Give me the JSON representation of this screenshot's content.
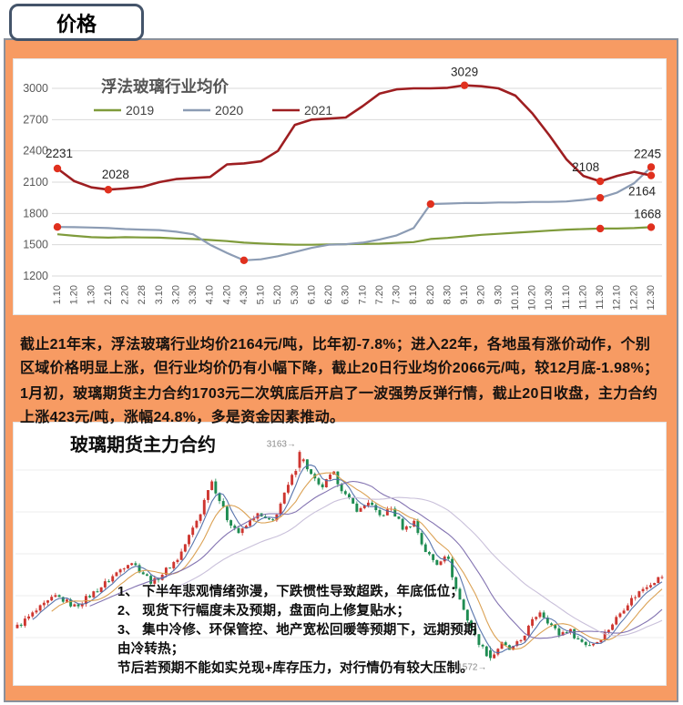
{
  "header": {
    "title": "价格"
  },
  "paragraphs": [
    "截止21年末，浮法玻璃行业均价2164元/吨，比年初-7.8%；进入22年，各地虽有涨价动作，个别区域价格明显上涨，但行业均价仍有小幅下降，截止20日行业均价2066元/吨，较12月底-1.98%；",
    "1月初，玻璃期货主力合约1703元二次筑底后开启了一波强势反弹行情，截止20日收盘，主力合约上涨423元/吨，涨幅24.8%，多是资金因素推动。"
  ],
  "colors": {
    "background_orange": "#F79B63",
    "outer_border": "#8A909B",
    "tab_border": "#44546A",
    "marker_red": "#E0301E"
  },
  "chart_data": [
    {
      "type": "line",
      "title": "浮法玻璃行业均价",
      "legend_position": "top",
      "grid": true,
      "grid_color": "#D9D9D9",
      "axis_text_color": "#595959",
      "marker_color": "#E0301E",
      "yticks": [
        1200,
        1500,
        1800,
        2100,
        2400,
        2700,
        3000
      ],
      "ylim": [
        1200,
        3050
      ],
      "categories": [
        "1.10",
        "1.20",
        "1.30",
        "2.10",
        "2.20",
        "2.28",
        "3.10",
        "3.20",
        "3.30",
        "4.10",
        "4.20",
        "4.30",
        "5.10",
        "5.20",
        "5.30",
        "6.10",
        "6.20",
        "6.30",
        "7.10",
        "7.20",
        "7.30",
        "8.10",
        "8.20",
        "8.30",
        "9.10",
        "9.20",
        "9.30",
        "10.10",
        "10.20",
        "10.30",
        "11.10",
        "11.20",
        "11.30",
        "12.10",
        "12.20",
        "12.30"
      ],
      "series": [
        {
          "name": "2019",
          "color": "#7F9B3B",
          "values": [
            1600,
            1585,
            1572,
            1568,
            1572,
            1570,
            1568,
            1560,
            1555,
            1545,
            1535,
            1520,
            1512,
            1505,
            1500,
            1500,
            1502,
            1505,
            1508,
            1510,
            1518,
            1525,
            1555,
            1565,
            1580,
            1595,
            1605,
            1615,
            1625,
            1635,
            1645,
            1650,
            1655,
            1655,
            1660,
            1668
          ],
          "markers": [
            32,
            35
          ],
          "labels": [
            {
              "i": 35,
              "text": "1668",
              "dx": -4,
              "dy": -10
            }
          ]
        },
        {
          "name": "2020",
          "color": "#8C9CB4",
          "values": [
            1670,
            1668,
            1665,
            1660,
            1650,
            1645,
            1640,
            1625,
            1600,
            1500,
            1420,
            1350,
            1360,
            1390,
            1430,
            1470,
            1500,
            1505,
            1520,
            1550,
            1590,
            1660,
            1890,
            1895,
            1900,
            1900,
            1905,
            1905,
            1910,
            1910,
            1915,
            1930,
            1950,
            2000,
            2090,
            2245
          ],
          "markers": [
            0,
            11,
            22,
            32,
            35
          ],
          "labels": [
            {
              "i": 35,
              "text": "2245",
              "dx": -4,
              "dy": -10
            }
          ]
        },
        {
          "name": "2021",
          "color": "#9E1E21",
          "values": [
            2231,
            2110,
            2050,
            2028,
            2040,
            2055,
            2100,
            2130,
            2140,
            2150,
            2270,
            2280,
            2300,
            2400,
            2650,
            2700,
            2710,
            2720,
            2830,
            2950,
            2990,
            3000,
            3000,
            3005,
            3029,
            3020,
            3000,
            2930,
            2760,
            2550,
            2320,
            2160,
            2108,
            2160,
            2200,
            2164
          ],
          "markers": [
            0,
            3,
            24,
            32,
            35
          ],
          "labels": [
            {
              "i": 0,
              "text": "2231",
              "dx": 2,
              "dy": -12
            },
            {
              "i": 3,
              "text": "2028",
              "dx": 8,
              "dy": -12
            },
            {
              "i": 24,
              "text": "3029",
              "dx": 0,
              "dy": -10
            },
            {
              "i": 32,
              "text": "2108",
              "dx": -16,
              "dy": -11
            },
            {
              "i": 35,
              "text": "2164",
              "dx": -10,
              "dy": 22
            }
          ]
        }
      ]
    },
    {
      "type": "candlestick",
      "title": "玻璃期货主力合约",
      "up_color": "#CE3630",
      "down_color": "#1E8C52",
      "grid_color": "#ECECEC",
      "label_color": "#8A8A8A",
      "num_candles": 170,
      "peak": {
        "t": 0.44,
        "high": 3163,
        "label": "3163→"
      },
      "trough": {
        "t": 0.735,
        "low": 1572,
        "label": "1572→"
      },
      "keypoints": [
        [
          0.0,
          1830
        ],
        [
          0.03,
          1950
        ],
        [
          0.06,
          2060
        ],
        [
          0.09,
          1980
        ],
        [
          0.13,
          2130
        ],
        [
          0.175,
          2330
        ],
        [
          0.21,
          2160
        ],
        [
          0.25,
          2350
        ],
        [
          0.285,
          2700
        ],
        [
          0.3,
          2950
        ],
        [
          0.325,
          2650
        ],
        [
          0.345,
          2530
        ],
        [
          0.37,
          2680
        ],
        [
          0.395,
          2610
        ],
        [
          0.42,
          2890
        ],
        [
          0.44,
          3120
        ],
        [
          0.455,
          2980
        ],
        [
          0.47,
          2870
        ],
        [
          0.49,
          2990
        ],
        [
          0.51,
          2810
        ],
        [
          0.53,
          2700
        ],
        [
          0.545,
          2780
        ],
        [
          0.56,
          2660
        ],
        [
          0.58,
          2720
        ],
        [
          0.6,
          2560
        ],
        [
          0.615,
          2630
        ],
        [
          0.63,
          2420
        ],
        [
          0.65,
          2300
        ],
        [
          0.665,
          2390
        ],
        [
          0.68,
          2120
        ],
        [
          0.695,
          1920
        ],
        [
          0.71,
          1760
        ],
        [
          0.725,
          1640
        ],
        [
          0.735,
          1590
        ],
        [
          0.75,
          1700
        ],
        [
          0.765,
          1650
        ],
        [
          0.78,
          1720
        ],
        [
          0.795,
          1840
        ],
        [
          0.81,
          1950
        ],
        [
          0.825,
          1860
        ],
        [
          0.84,
          1770
        ],
        [
          0.855,
          1810
        ],
        [
          0.87,
          1730
        ],
        [
          0.885,
          1690
        ],
        [
          0.9,
          1720
        ],
        [
          0.915,
          1800
        ],
        [
          0.93,
          1900
        ],
        [
          0.945,
          2000
        ],
        [
          0.96,
          2070
        ],
        [
          0.975,
          2140
        ],
        [
          1.0,
          2210
        ]
      ],
      "mas": [
        {
          "window": 5,
          "color": "#4F6EA8"
        },
        {
          "window": 10,
          "color": "#D99C4A"
        },
        {
          "window": 20,
          "color": "#7C6BAD"
        },
        {
          "window": 40,
          "color": "#C6BDD8"
        }
      ],
      "annotations": [
        "1、 下半年悲观情绪弥漫，下跌惯性导致超跌，年底低位；",
        "2、 现货下行幅度未及预期，盘面向上修复贴水；",
        "3、 集中冷修、环保管控、地产宽松回暖等预期下，远期预期由冷转热；",
        "节后若预期不能如实兑现+库存压力，对行情仍有较大压制。"
      ]
    }
  ]
}
